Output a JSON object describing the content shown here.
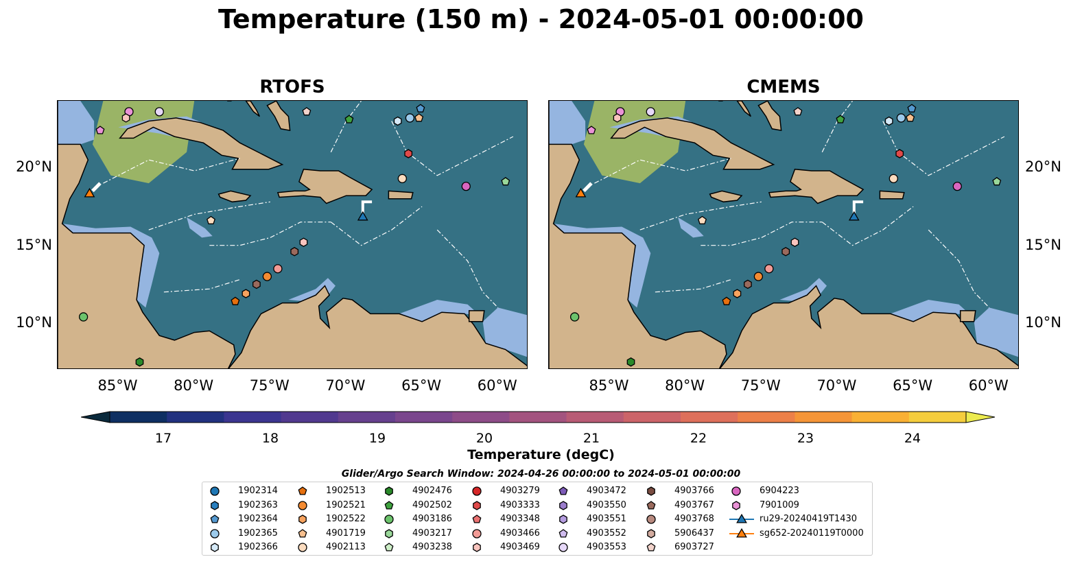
{
  "title": "Temperature (150 m) - 2024-05-01 00:00:00",
  "panels": [
    {
      "title": "RTOFS"
    },
    {
      "title": "CMEMS"
    }
  ],
  "x_ticks": [
    "85°W",
    "80°W",
    "75°W",
    "70°W",
    "65°W",
    "60°W"
  ],
  "y_ticks": [
    "20°N",
    "15°N",
    "10°N"
  ],
  "map_extent": {
    "lon": [
      -89,
      -58
    ],
    "lat": [
      7,
      24.3
    ]
  },
  "colorbar": {
    "label": "Temperature (degC)",
    "ticks": [
      "17",
      "18",
      "19",
      "20",
      "21",
      "22",
      "23",
      "24"
    ],
    "range": [
      16.5,
      24.5
    ],
    "colors": [
      "#0a2a3c",
      "#0e2f62",
      "#22317f",
      "#3b3590",
      "#51398f",
      "#66408e",
      "#7a468d",
      "#8e4c88",
      "#a3537f",
      "#b85b75",
      "#cc6469",
      "#de705b",
      "#ec8048",
      "#f59537",
      "#f9b034",
      "#f5cd3d",
      "#eceb4f"
    ]
  },
  "legend": {
    "title": "Glider/Argo Search Window: 2024-04-26 00:00:00 to 2024-05-01 00:00:00",
    "items": [
      {
        "label": "1902314",
        "shape": "circle",
        "color": "#1f77b4"
      },
      {
        "label": "1902363",
        "shape": "hexagon",
        "color": "#2a7fbf"
      },
      {
        "label": "1902364",
        "shape": "pentagon",
        "color": "#5599d0"
      },
      {
        "label": "1902365",
        "shape": "circle",
        "color": "#9ccaeb"
      },
      {
        "label": "1902366",
        "shape": "hexagon",
        "color": "#d5e9f7"
      },
      {
        "label": "1902513",
        "shape": "pentagon",
        "color": "#e6700f"
      },
      {
        "label": "1902521",
        "shape": "circle",
        "color": "#f48b32"
      },
      {
        "label": "1902522",
        "shape": "hexagon",
        "color": "#f7a35f"
      },
      {
        "label": "4901719",
        "shape": "pentagon",
        "color": "#f8c08f"
      },
      {
        "label": "4902113",
        "shape": "circle",
        "color": "#fbdcbf"
      },
      {
        "label": "4902476",
        "shape": "hexagon",
        "color": "#2a8a2a"
      },
      {
        "label": "4902502",
        "shape": "pentagon",
        "color": "#3fa23f"
      },
      {
        "label": "4903186",
        "shape": "circle",
        "color": "#6cc36c"
      },
      {
        "label": "4903217",
        "shape": "hexagon",
        "color": "#9ad89a"
      },
      {
        "label": "4903238",
        "shape": "pentagon",
        "color": "#cdeec7"
      },
      {
        "label": "4903279",
        "shape": "circle",
        "color": "#d62728"
      },
      {
        "label": "4903333",
        "shape": "hexagon",
        "color": "#e04a4a"
      },
      {
        "label": "4903348",
        "shape": "pentagon",
        "color": "#ea7272"
      },
      {
        "label": "4903466",
        "shape": "circle",
        "color": "#f29b96"
      },
      {
        "label": "4903469",
        "shape": "hexagon",
        "color": "#f8c4be"
      },
      {
        "label": "4903472",
        "shape": "pentagon",
        "color": "#7d5bb8"
      },
      {
        "label": "4903550",
        "shape": "hexagon",
        "color": "#9b7dcc"
      },
      {
        "label": "4903551",
        "shape": "hexagon",
        "color": "#b59de0"
      },
      {
        "label": "4903552",
        "shape": "pentagon",
        "color": "#d0bcee"
      },
      {
        "label": "4903553",
        "shape": "circle",
        "color": "#e6d8f8"
      },
      {
        "label": "4903766",
        "shape": "hexagon",
        "color": "#7a4d42"
      },
      {
        "label": "4903767",
        "shape": "pentagon",
        "color": "#9a6a5d"
      },
      {
        "label": "4903768",
        "shape": "circle",
        "color": "#b88a7f"
      },
      {
        "label": "5906437",
        "shape": "hexagon",
        "color": "#d2ab9f"
      },
      {
        "label": "6903727",
        "shape": "pentagon",
        "color": "#f2d3cb"
      },
      {
        "label": "6904223",
        "shape": "circle",
        "color": "#d966c0"
      },
      {
        "label": "7901009",
        "shape": "hexagon",
        "color": "#ea92d6"
      },
      {
        "label": "ru29-20240419T1430",
        "shape": "triangle-line",
        "color": "#1f77b4"
      },
      {
        "label": "sg652-20240119T0000",
        "shape": "triangle-line",
        "color": "#ff7f0e"
      }
    ]
  },
  "markers": [
    {
      "lon": -86.2,
      "lat": 22.4,
      "shape": "pentagon",
      "color": "#ea92d6"
    },
    {
      "lon": -84.3,
      "lat": 23.6,
      "shape": "circle",
      "color": "#ea92d6"
    },
    {
      "lon": -84.5,
      "lat": 23.2,
      "shape": "hexagon",
      "color": "#f8c4be"
    },
    {
      "lon": -82.3,
      "lat": 23.6,
      "shape": "circle",
      "color": "#e6d8f8"
    },
    {
      "lon": -72.6,
      "lat": 23.6,
      "shape": "pentagon",
      "color": "#f2d3cb"
    },
    {
      "lon": -69.8,
      "lat": 23.1,
      "shape": "pentagon",
      "color": "#3fa23f"
    },
    {
      "lon": -65.1,
      "lat": 23.8,
      "shape": "pentagon",
      "color": "#5599d0"
    },
    {
      "lon": -65.8,
      "lat": 23.2,
      "shape": "circle",
      "color": "#9ccaeb"
    },
    {
      "lon": -66.6,
      "lat": 23.0,
      "shape": "hexagon",
      "color": "#d5e9f7"
    },
    {
      "lon": -65.2,
      "lat": 23.2,
      "shape": "pentagon",
      "color": "#f8c08f"
    },
    {
      "lon": -65.9,
      "lat": 20.9,
      "shape": "hexagon",
      "color": "#e04a4a"
    },
    {
      "lon": -66.3,
      "lat": 19.3,
      "shape": "circle",
      "color": "#fbdcbf"
    },
    {
      "lon": -62.1,
      "lat": 18.8,
      "shape": "circle",
      "color": "#d966c0"
    },
    {
      "lon": -59.5,
      "lat": 19.1,
      "shape": "pentagon",
      "color": "#9ad89a"
    },
    {
      "lon": -78.9,
      "lat": 16.6,
      "shape": "pentagon",
      "color": "#fbdcbf"
    },
    {
      "lon": -72.8,
      "lat": 15.2,
      "shape": "hexagon",
      "color": "#f8c4be"
    },
    {
      "lon": -73.4,
      "lat": 14.6,
      "shape": "hexagon",
      "color": "#9a6a5d"
    },
    {
      "lon": -74.5,
      "lat": 13.5,
      "shape": "circle",
      "color": "#f29b96"
    },
    {
      "lon": -75.2,
      "lat": 13.0,
      "shape": "circle",
      "color": "#f48b32"
    },
    {
      "lon": -75.9,
      "lat": 12.5,
      "shape": "hexagon",
      "color": "#9a6a5d"
    },
    {
      "lon": -76.6,
      "lat": 11.9,
      "shape": "hexagon",
      "color": "#f7a35f"
    },
    {
      "lon": -77.3,
      "lat": 11.4,
      "shape": "pentagon",
      "color": "#e6700f"
    },
    {
      "lon": -87.3,
      "lat": 10.4,
      "shape": "circle",
      "color": "#6cc36c"
    },
    {
      "lon": -83.6,
      "lat": 7.5,
      "shape": "hexagon",
      "color": "#2a8a2a"
    },
    {
      "lon": -86.9,
      "lat": 18.3,
      "shape": "triangle",
      "color": "#ff7f0e"
    },
    {
      "lon": -68.9,
      "lat": 16.8,
      "shape": "triangle",
      "color": "#1f77b4"
    }
  ]
}
